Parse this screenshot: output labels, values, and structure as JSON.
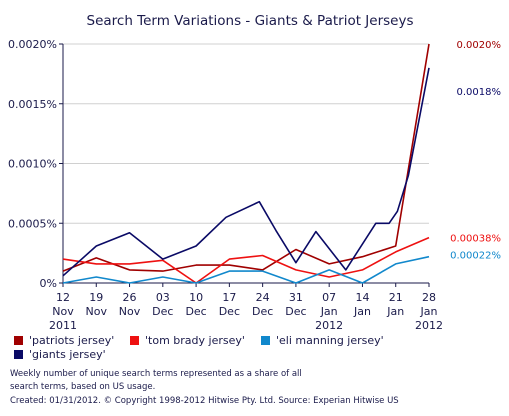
{
  "chart_data": {
    "type": "line",
    "title": "Search Term Variations - Giants & Patriot Jerseys",
    "xlabel": "",
    "ylabel": "",
    "ylim": [
      0,
      0.002
    ],
    "y_ticks": [
      "0%",
      "0.0005%",
      "0.0010%",
      "0.0015%",
      "0.0020%"
    ],
    "y_tick_values": [
      0,
      0.0005,
      0.001,
      0.0015,
      0.002
    ],
    "categories": [
      [
        "12",
        "Nov",
        "2011"
      ],
      [
        "19",
        "Nov",
        ""
      ],
      [
        "26",
        "Nov",
        ""
      ],
      [
        "03",
        "Dec",
        ""
      ],
      [
        "10",
        "Dec",
        ""
      ],
      [
        "17",
        "Dec",
        ""
      ],
      [
        "24",
        "Dec",
        ""
      ],
      [
        "31",
        "Dec",
        ""
      ],
      [
        "07",
        "Jan",
        "2012"
      ],
      [
        "14",
        "Jan",
        ""
      ],
      [
        "21",
        "Jan",
        ""
      ],
      [
        "28",
        "Jan",
        "2012"
      ]
    ],
    "x_points": [
      0,
      1,
      2,
      3,
      4,
      5,
      6,
      7,
      8,
      9,
      10,
      11
    ],
    "series": [
      {
        "name": "'patriots jersey'",
        "color": "#a00000",
        "x": [
          0,
          1,
          2,
          3,
          4,
          5,
          6,
          7,
          8,
          9,
          10,
          11
        ],
        "values": [
          0.0001,
          0.00021,
          0.00011,
          0.0001,
          0.00015,
          0.00015,
          0.00011,
          0.00028,
          0.00016,
          0.00022,
          0.00031,
          0.002
        ],
        "end_label": "0.0020%"
      },
      {
        "name": "'tom brady jersey'",
        "color": "#ee1111",
        "x": [
          0,
          1,
          2,
          3,
          4,
          5,
          6,
          7,
          8,
          9,
          10,
          11
        ],
        "values": [
          0.0002,
          0.00016,
          0.00016,
          0.00019,
          0.0,
          0.0002,
          0.00023,
          0.00011,
          5e-05,
          0.00011,
          0.00026,
          0.00038
        ],
        "end_label": "0.00038%"
      },
      {
        "name": "'eli manning jersey'",
        "color": "#1188cc",
        "x": [
          0,
          1,
          2,
          3,
          4,
          5,
          6,
          7,
          8,
          9,
          10,
          11
        ],
        "values": [
          0.0,
          5e-05,
          0.0,
          5e-05,
          0.0,
          0.0001,
          0.0001,
          0.0,
          0.00011,
          0.0,
          0.00016,
          0.00022
        ],
        "end_label": "0.00022%"
      },
      {
        "name": "'giants jersey'",
        "color": "#0a0a66",
        "x": [
          0,
          1,
          2,
          3,
          4,
          4.9,
          5.9,
          6.4,
          7,
          7.6,
          8.5,
          9.4,
          9.8,
          10.05,
          10.38,
          11
        ],
        "values": [
          6e-05,
          0.00031,
          0.00042,
          0.0002,
          0.00031,
          0.00055,
          0.00068,
          0.00044,
          0.00017,
          0.00043,
          0.00011,
          0.0005,
          0.0005,
          0.0006,
          0.0009,
          0.0018
        ],
        "end_label": "0.0018%"
      }
    ],
    "legend_position": "bottom-left",
    "grid": true
  },
  "footer": {
    "line1": "Weekly number of unique search terms represented as a share of all",
    "line2": "search terms, based on US usage.",
    "line3": "Created: 01/31/2012. © Copyright 1998-2012 Hitwise Pty. Ltd.   Source: Experian Hitwise US"
  }
}
